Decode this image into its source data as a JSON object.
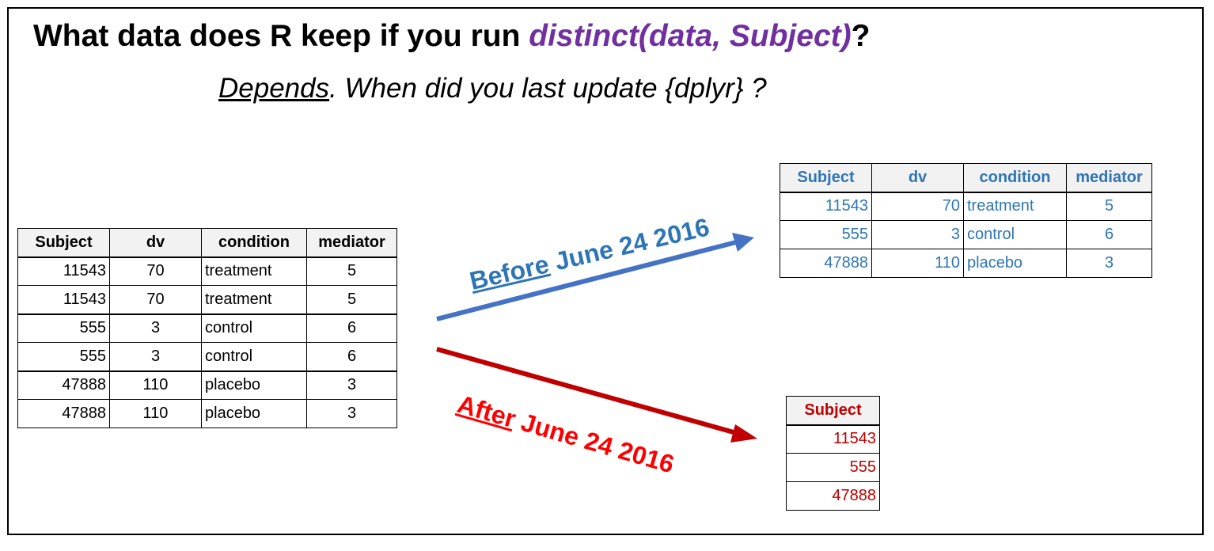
{
  "title": {
    "prefix": "What data does R keep if you run ",
    "code": "distinct(data, Subject)",
    "suffix": "?"
  },
  "subtitle": {
    "underlined": "Depends",
    "rest": ". When did you last update {dplyr} ?"
  },
  "input_table": {
    "headers": [
      "Subject",
      "dv",
      "condition",
      "mediator"
    ],
    "rows": [
      [
        "11543",
        "70",
        "treatment",
        "5"
      ],
      [
        "11543",
        "70",
        "treatment",
        "5"
      ],
      [
        "555",
        "3",
        "control",
        "6"
      ],
      [
        "555",
        "3",
        "control",
        "6"
      ],
      [
        "47888",
        "110",
        "placebo",
        "3"
      ],
      [
        "47888",
        "110",
        "placebo",
        "3"
      ]
    ]
  },
  "before": {
    "label_underlined": "Before",
    "label_rest": " June 24 2016",
    "color": "#2e75b6",
    "arrow_color": "#4472c4",
    "table": {
      "headers": [
        "Subject",
        "dv",
        "condition",
        "mediator"
      ],
      "rows": [
        [
          "11543",
          "70",
          "treatment",
          "5"
        ],
        [
          "555",
          "3",
          "control",
          "6"
        ],
        [
          "47888",
          "110",
          "placebo",
          "3"
        ]
      ]
    }
  },
  "after": {
    "label_underlined": "After",
    "label_rest": " June 24 2016",
    "color": "#ff0000",
    "arrow_color": "#c00000",
    "table": {
      "headers": [
        "Subject"
      ],
      "rows": [
        [
          "11543"
        ],
        [
          "555"
        ],
        [
          "47888"
        ]
      ]
    }
  }
}
